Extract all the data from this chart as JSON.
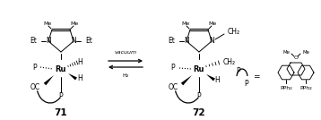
{
  "background_color": "#ffffff",
  "figsize": [
    3.58,
    1.34
  ],
  "dpi": 100,
  "compound_71_label": "71",
  "compound_72_label": "72",
  "equilibrium_top": "vacuum",
  "equilibrium_bottom": "H₂",
  "fs_base": 5.5,
  "fs_small": 4.5,
  "fs_label": 7.5
}
